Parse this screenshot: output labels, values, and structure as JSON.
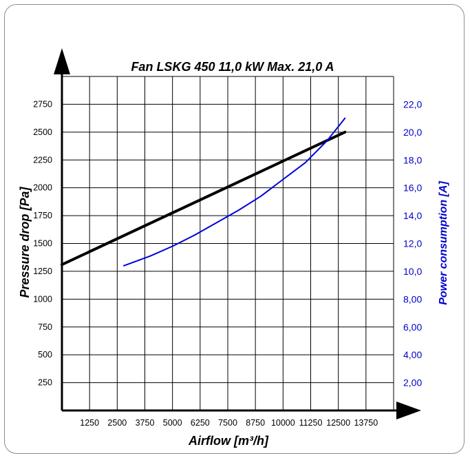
{
  "chart_data": {
    "type": "line",
    "title": "Fan LSKG 450 11,0 kW Max. 21,0 A",
    "xlabel": "Airflow [m³/h]",
    "ylabel": "Pressure drop [Pa]",
    "y2label": "Power consumption [A]",
    "xlim": [
      0,
      15000
    ],
    "ylim": [
      0,
      3000
    ],
    "y2lim": [
      0,
      24
    ],
    "x_ticks": [
      "1250",
      "2500",
      "3750",
      "5000",
      "6250",
      "7500",
      "8750",
      "10000",
      "11250",
      "12500",
      "13750"
    ],
    "y_ticks": [
      "250",
      "500",
      "750",
      "1000",
      "1250",
      "1500",
      "1750",
      "2000",
      "2250",
      "2500",
      "2750"
    ],
    "y2_ticks": [
      "2,00",
      "4,00",
      "6,00",
      "8,00",
      "10,0",
      "12,0",
      "14,0",
      "16,0",
      "18,0",
      "20,0",
      "22,0"
    ],
    "grid": true,
    "series": [
      {
        "color": "#000000",
        "axis": "left",
        "x": [
          0,
          12800
        ],
        "y": [
          1310,
          2500
        ]
      },
      {
        "color": "#0000dd",
        "axis": "right",
        "x": [
          2800,
          4000,
          5000,
          6000,
          7000,
          8000,
          9000,
          10000,
          11000,
          12000,
          12500,
          12800
        ],
        "y": [
          10.4,
          11.1,
          11.8,
          12.6,
          13.5,
          14.4,
          15.4,
          16.6,
          17.8,
          19.4,
          20.4,
          21.0
        ]
      }
    ]
  }
}
